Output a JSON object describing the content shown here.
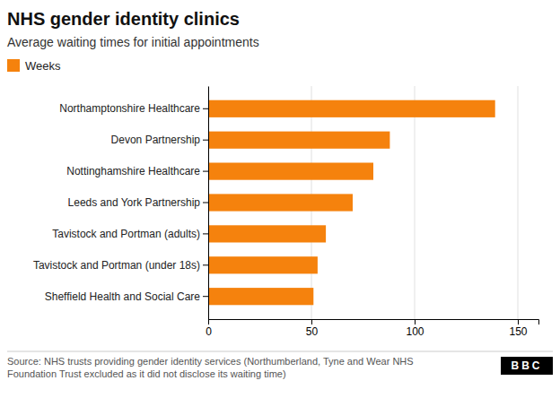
{
  "chart_data": {
    "type": "bar",
    "orientation": "horizontal",
    "title": "NHS gender identity clinics",
    "subtitle": "Average waiting times for initial appointments",
    "categories": [
      "Sheffield Health and Social Care",
      "Tavistock and Portman (under 18s)",
      "Tavistock and Portman (adults)",
      "Leeds and York Partnership",
      "Nottinghamshire Healthcare",
      "Devon Partnership",
      "Northamptonshire Healthcare"
    ],
    "series": [
      {
        "name": "Weeks",
        "color": "#F5820D",
        "values": [
          51,
          53,
          57,
          70,
          80,
          88,
          139
        ]
      }
    ],
    "xlim": [
      0,
      160
    ],
    "xticks": [
      0,
      50,
      100,
      150
    ],
    "grid": true,
    "legend": "top-left",
    "annotations": [
      "Source: NHS trusts providing gender identity services (Northumberland, Tyne and Wear NHS",
      "Foundation Trust excluded as it did not disclose its waiting time)",
      "BBC"
    ]
  }
}
